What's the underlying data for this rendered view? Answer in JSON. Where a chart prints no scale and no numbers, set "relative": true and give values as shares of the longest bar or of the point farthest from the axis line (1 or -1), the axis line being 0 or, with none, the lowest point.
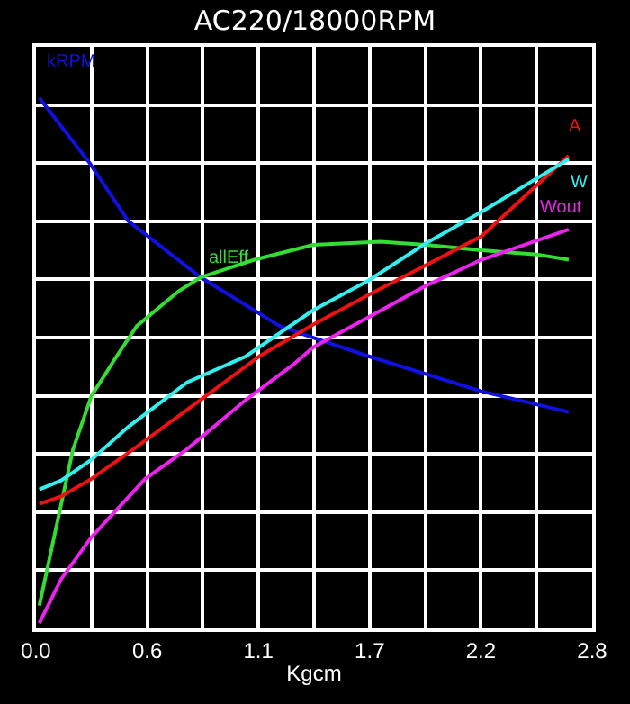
{
  "chart_data": {
    "type": "line",
    "title": "AC220/18000RPM",
    "xlabel": "Kgcm",
    "relative": true,
    "xlim": [
      0,
      2.8
    ],
    "xticks": [
      {
        "value": 0,
        "label": "0.0"
      },
      {
        "value": 0.56,
        "label": "0.6"
      },
      {
        "value": 1.12,
        "label": "1.1"
      },
      {
        "value": 1.68,
        "label": "1.7"
      },
      {
        "value": 2.24,
        "label": "2.2"
      },
      {
        "value": 2.8,
        "label": "2.8"
      }
    ],
    "grid": true,
    "legend": false,
    "marker": "none",
    "line_style": "solid",
    "series": [
      {
        "name": "kRPM",
        "color": "#1010e0",
        "x": [
          0.017,
          0.271,
          0.465,
          0.829,
          1.227,
          1.396,
          1.675,
          2.242,
          2.682
        ],
        "values": [
          1,
          0.877,
          0.768,
          0.662,
          0.57,
          0.548,
          0.513,
          0.447,
          0.408
        ]
      },
      {
        "name": "allEff",
        "color": "#33dd33",
        "x": [
          0.017,
          0.186,
          0.279,
          0.406,
          0.508,
          0.719,
          0.829,
          1.1,
          1.396,
          1.734,
          1.963,
          2.242,
          2.521,
          2.682
        ],
        "values": [
          0.043,
          0.337,
          0.438,
          0.513,
          0.57,
          0.636,
          0.662,
          0.695,
          0.723,
          0.729,
          0.723,
          0.713,
          0.705,
          0.695
        ]
      },
      {
        "name": "A",
        "color": "#ee1111",
        "x": [
          0.017,
          0.127,
          0.279,
          0.491,
          0.829,
          1.125,
          1.396,
          1.675,
          2.242,
          2.682
        ],
        "values": [
          0.235,
          0.249,
          0.282,
          0.338,
          0.431,
          0.513,
          0.573,
          0.629,
          0.739,
          0.891
        ]
      },
      {
        "name": "W",
        "color": "#33eeee",
        "x": [
          0.017,
          0.127,
          0.279,
          0.465,
          0.761,
          1.057,
          1.396,
          1.675,
          1.963,
          2.242,
          2.682
        ],
        "values": [
          0.262,
          0.279,
          0.318,
          0.38,
          0.464,
          0.513,
          0.6,
          0.656,
          0.726,
          0.785,
          0.885
        ]
      },
      {
        "name": "Wout",
        "color": "#ee22ee",
        "x": [
          0.017,
          0.127,
          0.279,
          0.55,
          0.761,
          1.057,
          1.294,
          1.396,
          1.675,
          1.963,
          2.242,
          2.682
        ],
        "values": [
          0.01,
          0.093,
          0.172,
          0.282,
          0.338,
          0.431,
          0.497,
          0.53,
          0.587,
          0.646,
          0.695,
          0.752
        ]
      }
    ]
  }
}
